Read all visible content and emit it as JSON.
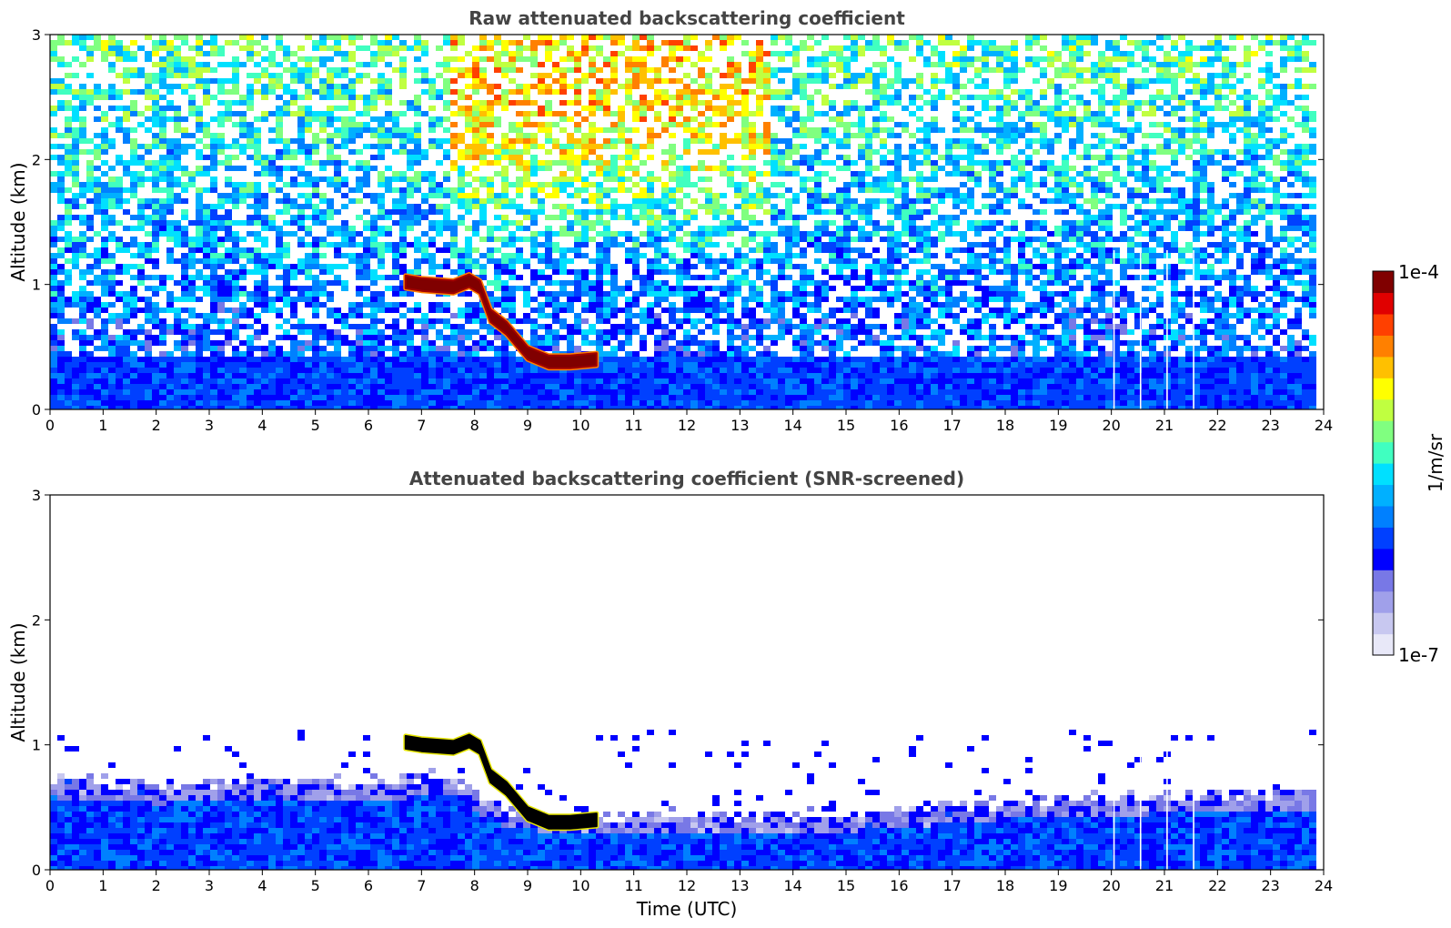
{
  "chart_data": [
    {
      "type": "heatmap",
      "title": "Raw attenuated backscattering coefficient",
      "xlabel": "",
      "ylabel": "Altitude (km)",
      "xlim": [
        0,
        24
      ],
      "ylim": [
        0,
        3
      ],
      "x_ticks": [
        "0",
        "1",
        "2",
        "3",
        "4",
        "5",
        "6",
        "7",
        "8",
        "9",
        "10",
        "11",
        "12",
        "13",
        "14",
        "15",
        "16",
        "17",
        "18",
        "19",
        "20",
        "21",
        "22",
        "23",
        "24"
      ],
      "y_ticks": [
        "0",
        "1",
        "2",
        "3"
      ],
      "data_end_time": 23.8,
      "boundary_layer_top_km": 0.45,
      "background_noise": {
        "low_altitude_level": 0.28,
        "high_altitude_level": 0.55,
        "enhanced_window_hours": [
          7.5,
          13.5
        ],
        "enhanced_level": 0.72
      },
      "cloud_layer": {
        "time": [
          6.7,
          7.0,
          7.6,
          7.9,
          8.1,
          8.3,
          8.6,
          9.0,
          9.4,
          9.8,
          10.3
        ],
        "altitude_km": [
          1.02,
          1.0,
          0.98,
          1.03,
          0.98,
          0.75,
          0.65,
          0.45,
          0.38,
          0.38,
          0.4
        ],
        "level": 1.0
      },
      "missing_data_times": [
        20.05,
        20.55,
        21.05,
        21.55
      ]
    },
    {
      "type": "heatmap",
      "title": "Attenuated backscattering coefficient (SNR-screened)",
      "xlabel": "Time (UTC)",
      "ylabel": "Altitude (km)",
      "xlim": [
        0,
        24
      ],
      "ylim": [
        0,
        3
      ],
      "x_ticks": [
        "0",
        "1",
        "2",
        "3",
        "4",
        "5",
        "6",
        "7",
        "8",
        "9",
        "10",
        "11",
        "12",
        "13",
        "14",
        "15",
        "16",
        "17",
        "18",
        "19",
        "20",
        "21",
        "22",
        "23",
        "24"
      ],
      "y_ticks": [
        "0",
        "1",
        "2",
        "3"
      ],
      "data_end_time": 23.8,
      "aerosol_layer_top_km": {
        "time": [
          0,
          2,
          4,
          6,
          7.5,
          8.5,
          10.5,
          11.5,
          13,
          16,
          17,
          19,
          21,
          23,
          23.8
        ],
        "altitude_km": [
          0.75,
          0.7,
          0.75,
          0.72,
          0.78,
          0.5,
          0.45,
          0.48,
          0.45,
          0.5,
          0.55,
          0.6,
          0.62,
          0.65,
          0.65
        ]
      },
      "cloud_layer": {
        "time": [
          6.7,
          7.0,
          7.6,
          7.9,
          8.1,
          8.3,
          8.6,
          9.0,
          9.4,
          9.8,
          10.3
        ],
        "altitude_km": [
          1.02,
          1.0,
          0.98,
          1.03,
          0.98,
          0.75,
          0.65,
          0.45,
          0.38,
          0.38,
          0.4
        ],
        "level": 1.0,
        "saturated_color": "#000000"
      },
      "missing_data_times": [
        20.05,
        20.55,
        21.05,
        21.55
      ]
    }
  ],
  "colorbar": {
    "max_label": "1e-4",
    "min_label": "1e-7",
    "unit_label": "1/m/sr",
    "colors": [
      "#e8e8f8",
      "#c8c8f0",
      "#a0a0ea",
      "#7878e6",
      "#0000ff",
      "#0040ff",
      "#0080ff",
      "#00b0ff",
      "#00e0ff",
      "#40ffc0",
      "#80ff80",
      "#c0ff40",
      "#ffff00",
      "#ffc000",
      "#ff8000",
      "#ff4000",
      "#e00000",
      "#800000"
    ]
  }
}
